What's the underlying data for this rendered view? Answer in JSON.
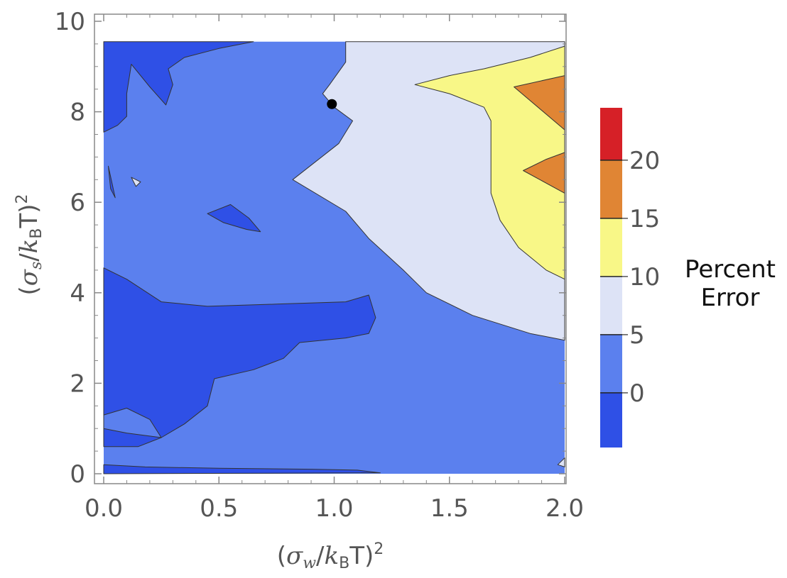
{
  "chart_data": {
    "type": "contour",
    "xlabel": {
      "open": "(",
      "sym": "σ",
      "sub": "w",
      "mid": "/",
      "k": "k",
      "ksub": "B",
      "T": "T",
      "close": ")",
      "sup": "2"
    },
    "ylabel": {
      "open": "(",
      "sym": "σ",
      "sub": "s",
      "mid": "/",
      "k": "k",
      "ksub": "B",
      "T": "T",
      "close": ")",
      "sup": "2"
    },
    "xlim": [
      0.0,
      2.0
    ],
    "ylim": [
      0,
      10
    ],
    "x_ticks": [
      "0.0",
      "0.5",
      "1.0",
      "1.5",
      "2.0"
    ],
    "x_tick_values": [
      0.0,
      0.5,
      1.0,
      1.5,
      2.0
    ],
    "y_ticks": [
      "0",
      "2",
      "4",
      "6",
      "8",
      "10"
    ],
    "y_tick_values": [
      0,
      2,
      4,
      6,
      8,
      10
    ],
    "grid": false,
    "colorbar": {
      "title": [
        "Percent",
        "Error"
      ],
      "tick_labels": [
        "0",
        "5",
        "10",
        "15",
        "20"
      ],
      "levels": [
        0,
        5,
        10,
        15,
        20
      ],
      "range": [
        -4.7,
        24.5
      ],
      "bands": [
        {
          "range": "< 0",
          "color": "#2f50e6"
        },
        {
          "range": "0–5",
          "color": "#5b80ee"
        },
        {
          "range": "5–10",
          "color": "#dde3f6"
        },
        {
          "range": "10–15",
          "color": "#f8f787"
        },
        {
          "range": "15–20",
          "color": "#e08534"
        },
        {
          "range": "> 20",
          "color": "#d62027"
        }
      ]
    },
    "regions": [
      {
        "level": "0-5",
        "color": "#5b80ee",
        "polygon": [
          [
            0.0,
            0.0
          ],
          [
            2.0,
            0.0
          ],
          [
            2.0,
            9.55
          ],
          [
            0.0,
            9.55
          ]
        ]
      },
      {
        "level": "5-10",
        "color": "#dde3f6",
        "polygon": [
          [
            1.05,
            9.55
          ],
          [
            1.22,
            9.55
          ],
          [
            2.0,
            9.55
          ],
          [
            2.0,
            2.95
          ],
          [
            1.85,
            3.1
          ],
          [
            1.6,
            3.5
          ],
          [
            1.4,
            4.0
          ],
          [
            1.3,
            4.5
          ],
          [
            1.15,
            5.2
          ],
          [
            1.05,
            5.8
          ],
          [
            0.82,
            6.5
          ],
          [
            1.02,
            7.3
          ],
          [
            1.08,
            7.8
          ],
          [
            1.0,
            8.1
          ],
          [
            0.95,
            8.4
          ],
          [
            0.98,
            8.6
          ],
          [
            1.05,
            9.1
          ]
        ]
      },
      {
        "level": "10-15",
        "color": "#f8f787",
        "polygon": [
          [
            2.0,
            9.45
          ],
          [
            1.85,
            9.2
          ],
          [
            1.65,
            8.95
          ],
          [
            1.5,
            8.8
          ],
          [
            1.35,
            8.6
          ],
          [
            1.5,
            8.4
          ],
          [
            1.65,
            8.1
          ],
          [
            1.68,
            7.8
          ],
          [
            1.68,
            6.2
          ],
          [
            1.72,
            5.6
          ],
          [
            1.8,
            5.0
          ],
          [
            1.92,
            4.5
          ],
          [
            2.0,
            4.3
          ]
        ]
      },
      {
        "level": "15-20",
        "color": "#e08534",
        "polygon": [
          [
            2.0,
            8.8
          ],
          [
            1.78,
            8.55
          ],
          [
            2.0,
            7.6
          ]
        ]
      },
      {
        "level": "15-20",
        "color": "#e08534",
        "polygon": [
          [
            2.0,
            7.1
          ],
          [
            1.92,
            6.95
          ],
          [
            1.82,
            6.7
          ],
          [
            2.0,
            6.2
          ]
        ]
      },
      {
        "level": "<0",
        "color": "#2f50e6",
        "polygon": [
          [
            0.0,
            9.55
          ],
          [
            0.65,
            9.55
          ],
          [
            0.5,
            9.4
          ],
          [
            0.35,
            9.2
          ],
          [
            0.28,
            8.95
          ],
          [
            0.3,
            8.6
          ],
          [
            0.27,
            8.15
          ],
          [
            0.2,
            8.55
          ],
          [
            0.12,
            9.05
          ],
          [
            0.1,
            8.4
          ],
          [
            0.1,
            7.9
          ],
          [
            0.06,
            7.7
          ],
          [
            0.0,
            7.55
          ]
        ]
      },
      {
        "level": "<0",
        "color": "#2f50e6",
        "polygon": [
          [
            0.0,
            4.55
          ],
          [
            0.1,
            4.3
          ],
          [
            0.25,
            3.8
          ],
          [
            0.45,
            3.7
          ],
          [
            0.75,
            3.75
          ],
          [
            1.05,
            3.8
          ],
          [
            1.15,
            3.95
          ],
          [
            1.18,
            3.45
          ],
          [
            1.15,
            3.1
          ],
          [
            1.05,
            3.0
          ],
          [
            0.85,
            2.9
          ],
          [
            0.78,
            2.55
          ],
          [
            0.65,
            2.3
          ],
          [
            0.48,
            2.1
          ],
          [
            0.45,
            1.5
          ],
          [
            0.35,
            1.1
          ],
          [
            0.25,
            0.8
          ],
          [
            0.15,
            0.6
          ],
          [
            0.0,
            0.6
          ]
        ]
      },
      {
        "level": "<0",
        "color": "#2f50e6",
        "polygon": [
          [
            0.0,
            0.2
          ],
          [
            0.18,
            0.15
          ],
          [
            0.5,
            0.12
          ],
          [
            0.9,
            0.1
          ],
          [
            1.1,
            0.08
          ],
          [
            1.2,
            0.02
          ],
          [
            0.0,
            0.0
          ]
        ]
      },
      {
        "level": "<0",
        "color": "#2f50e6",
        "polygon": [
          [
            0.45,
            5.75
          ],
          [
            0.55,
            5.95
          ],
          [
            0.63,
            5.65
          ],
          [
            0.68,
            5.35
          ],
          [
            0.62,
            5.4
          ],
          [
            0.52,
            5.55
          ]
        ]
      },
      {
        "level": "<0",
        "color": "#2f50e6",
        "polygon": [
          [
            0.02,
            6.8
          ],
          [
            0.05,
            6.1
          ],
          [
            0.03,
            6.3
          ]
        ]
      },
      {
        "level": "0-5",
        "color": "#5b80ee",
        "polygon": [
          [
            0.0,
            1.3
          ],
          [
            0.1,
            1.45
          ],
          [
            0.2,
            1.2
          ],
          [
            0.25,
            0.8
          ],
          [
            0.1,
            0.9
          ],
          [
            0.0,
            1.0
          ]
        ]
      },
      {
        "level": "5-10",
        "color": "#dde3f6",
        "polygon": [
          [
            0.12,
            6.55
          ],
          [
            0.16,
            6.45
          ],
          [
            0.14,
            6.35
          ]
        ]
      },
      {
        "level": "5-10",
        "color": "#dde3f6",
        "polygon": [
          [
            1.97,
            0.2
          ],
          [
            2.0,
            0.35
          ],
          [
            2.0,
            0.15
          ]
        ]
      }
    ],
    "marker": {
      "x": 0.99,
      "y": 8.17,
      "color": "#000000"
    }
  }
}
